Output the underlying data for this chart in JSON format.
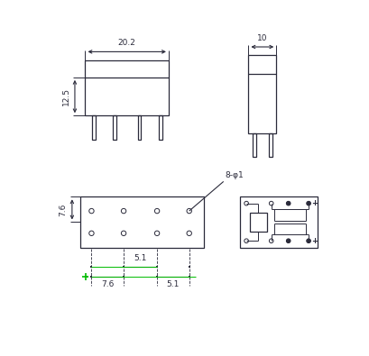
{
  "bg_color": "#ffffff",
  "line_color": "#2a2a3a",
  "dim_color": "#2a2a3a",
  "green_color": "#00bb00",
  "fig_width": 4.09,
  "fig_height": 3.95,
  "dpi": 100
}
